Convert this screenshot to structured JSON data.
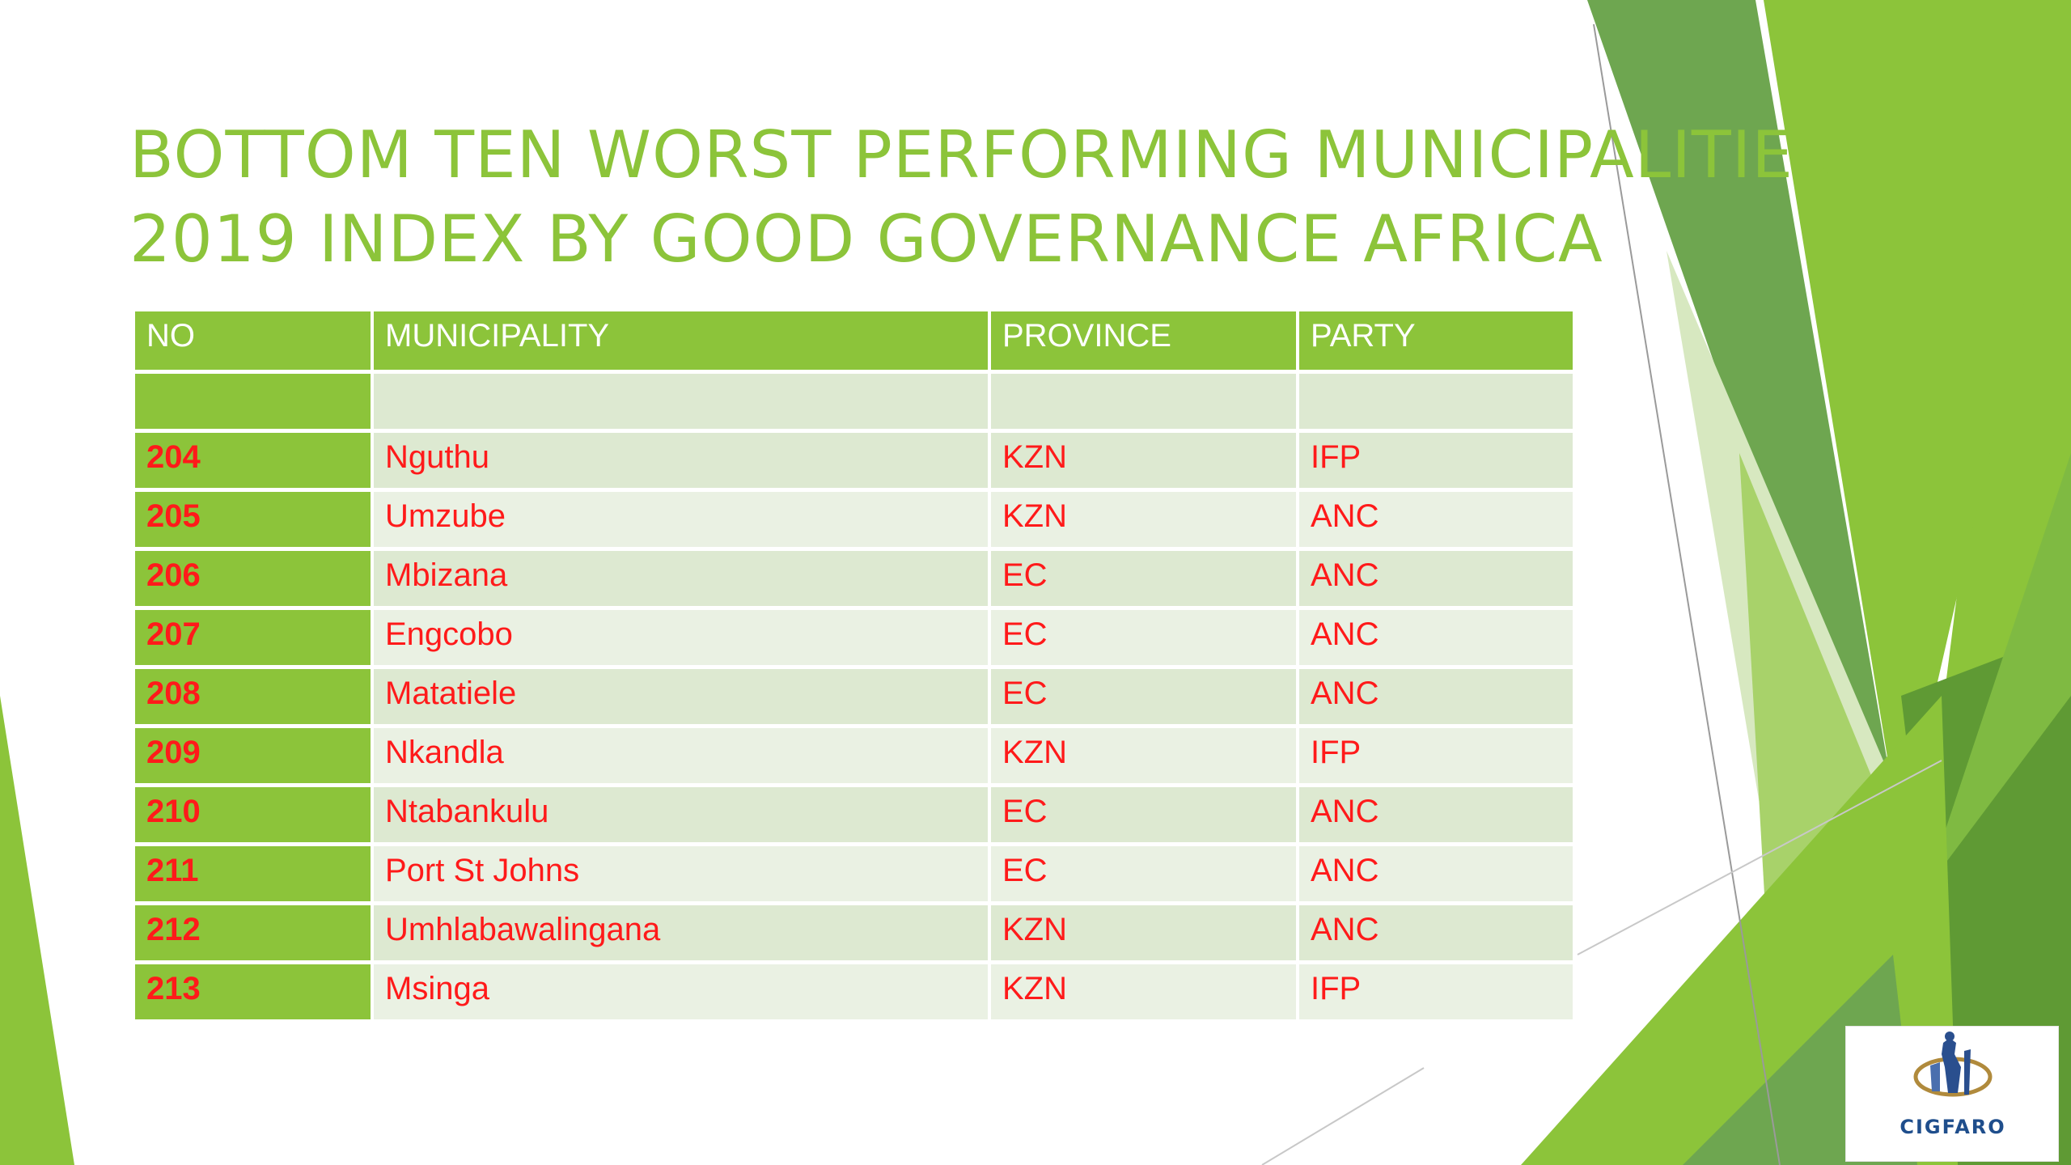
{
  "slide": {
    "title_lines": [
      "BOTTOM TEN WORST PERFORMING MUNICIPALITIES",
      "2019 INDEX BY GOOD GOVERNANCE AFRICA"
    ]
  },
  "table": {
    "headers": [
      "NO",
      "MUNICIPALITY",
      "PROVINCE",
      "PARTY"
    ],
    "rows": [
      {
        "no": "204",
        "municipality": "Nguthu",
        "province": "KZN",
        "party": "IFP"
      },
      {
        "no": "205",
        "municipality": "Umzube",
        "province": "KZN",
        "party": "ANC"
      },
      {
        "no": "206",
        "municipality": "Mbizana",
        "province": "EC",
        "party": "ANC"
      },
      {
        "no": "207",
        "municipality": "Engcobo",
        "province": "EC",
        "party": "ANC"
      },
      {
        "no": "208",
        "municipality": "Matatiele",
        "province": "EC",
        "party": "ANC"
      },
      {
        "no": "209",
        "municipality": "Nkandla",
        "province": "KZN",
        "party": "IFP"
      },
      {
        "no": "210",
        "municipality": "Ntabankulu",
        "province": "EC",
        "party": "ANC"
      },
      {
        "no": "211",
        "municipality": "Port St Johns",
        "province": "EC",
        "party": "ANC"
      },
      {
        "no": "212",
        "municipality": "Umhlabawalingana",
        "province": "KZN",
        "party": "ANC"
      },
      {
        "no": "213",
        "municipality": "Msinga",
        "province": "KZN",
        "party": "IFP"
      }
    ]
  },
  "logo": {
    "name": "CIGFARO",
    "icon": "crest-icon"
  },
  "colors": {
    "accent_green": "#8cc43a",
    "value_red": "#ff1a1a",
    "row_light": "#eaf1e3",
    "row_mid": "#dde9d1"
  }
}
